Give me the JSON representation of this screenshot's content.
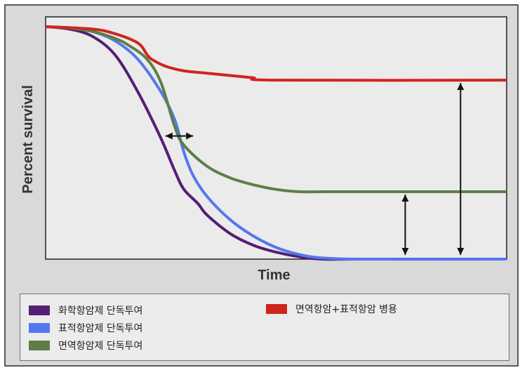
{
  "chart_data": {
    "type": "line",
    "title": "",
    "xlabel": "Time",
    "ylabel": "Percent survival",
    "grid": false,
    "legend_position": "bottom",
    "xlim": [
      0,
      100
    ],
    "ylim": [
      0,
      100
    ],
    "series": [
      {
        "name": "화학항암제 단독투여",
        "color": "#541f74",
        "x": [
          0,
          5,
          10,
          15,
          20,
          25,
          28,
          30,
          33,
          35,
          40,
          45,
          50,
          55,
          60,
          70,
          100
        ],
        "y": [
          100,
          99,
          96,
          88,
          72,
          52,
          38,
          30,
          24,
          19,
          11,
          6,
          3,
          1,
          0,
          0,
          0
        ]
      },
      {
        "name": "표적항암제 단독투여",
        "color": "#5577ee",
        "x": [
          0,
          5,
          10,
          15,
          20,
          25,
          28,
          30,
          32,
          35,
          40,
          45,
          50,
          55,
          60,
          70,
          100
        ],
        "y": [
          100,
          99.5,
          98,
          94,
          86,
          72,
          60,
          46,
          36,
          27,
          17,
          10,
          5,
          2,
          0.5,
          0,
          0
        ]
      },
      {
        "name": "면역항암제 단독투여",
        "color": "#5e7e47",
        "x": [
          0,
          5,
          10,
          15,
          18,
          22,
          25,
          28,
          30,
          35,
          40,
          45,
          50,
          55,
          60,
          70,
          100
        ],
        "y": [
          100,
          99.5,
          98,
          95,
          92,
          86,
          76,
          57,
          49,
          40,
          35,
          32,
          30,
          29,
          29,
          29,
          29
        ]
      },
      {
        "name": "면역항암+표적항암 병용",
        "color": "#d0251d",
        "x": [
          0,
          10,
          15,
          20,
          22,
          23,
          26,
          30,
          35,
          40,
          45,
          50,
          100
        ],
        "y": [
          100,
          99,
          97,
          93,
          88,
          86,
          83,
          81,
          80,
          79,
          78,
          77,
          77
        ]
      }
    ],
    "annotations": [
      {
        "type": "double-arrow",
        "orientation": "horizontal",
        "y": 53,
        "x_from": 26,
        "x_to": 32
      },
      {
        "type": "double-arrow",
        "orientation": "vertical",
        "x": 78,
        "y_from": 0,
        "y_to": 29
      },
      {
        "type": "double-arrow",
        "orientation": "vertical",
        "x": 90,
        "y_from": 0,
        "y_to": 77
      }
    ]
  },
  "legend": {
    "items": [
      {
        "label": "화학항암제 단독투여",
        "color": "#541f74"
      },
      {
        "label": "표적항암제 단독투여",
        "color": "#5577ee"
      },
      {
        "label": "면역항암제 단독투여",
        "color": "#5e7e47"
      },
      {
        "label": "면역항암+표적항암 병용",
        "color": "#d0251d"
      }
    ]
  }
}
